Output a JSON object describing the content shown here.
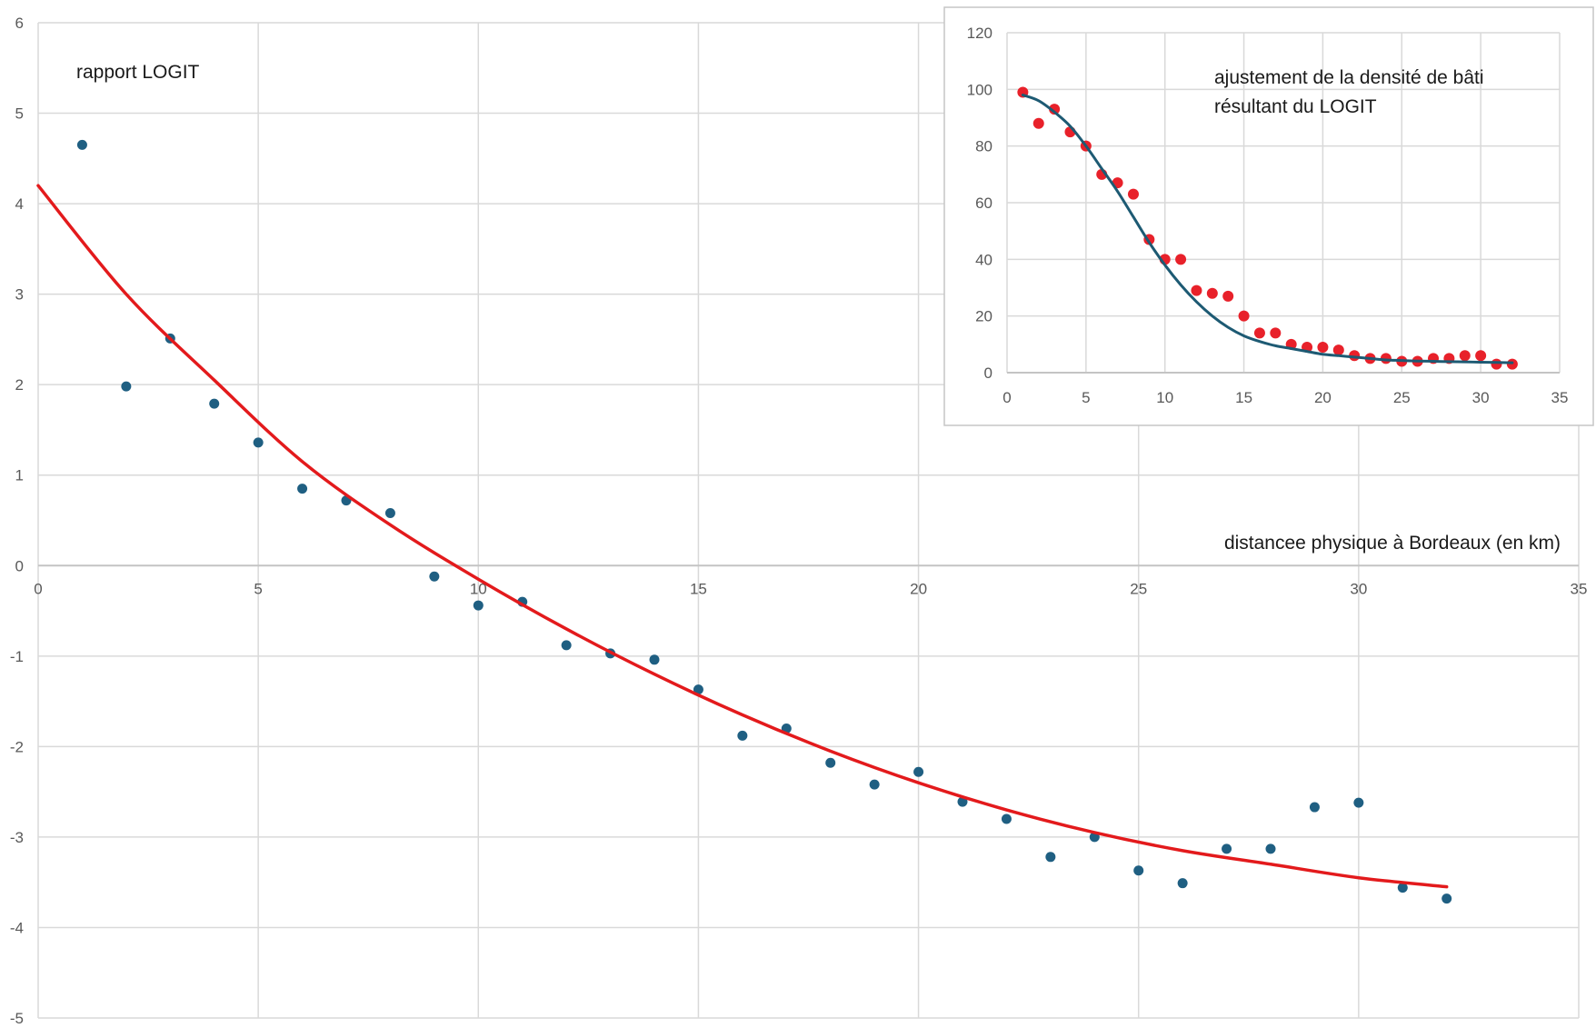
{
  "chart_data": [
    {
      "type": "scatter",
      "title": "",
      "annotations": [
        "rapport LOGIT"
      ],
      "xlabel": "distancee physique à Bordeaux (en km)",
      "ylabel": "",
      "xlim": [
        0,
        35
      ],
      "ylim": [
        -5,
        6
      ],
      "xticks": [
        0,
        5,
        10,
        15,
        20,
        25,
        30,
        35
      ],
      "yticks": [
        -5,
        -4,
        -3,
        -2,
        -1,
        0,
        1,
        2,
        3,
        4,
        5,
        6
      ],
      "grid": true,
      "series": [
        {
          "kind": "scatter",
          "color": "#1f5f82",
          "x": [
            1,
            2,
            3,
            4,
            5,
            6,
            7,
            8,
            9,
            10,
            11,
            12,
            13,
            14,
            15,
            16,
            17,
            18,
            19,
            20,
            21,
            22,
            23,
            24,
            25,
            26,
            27,
            28,
            29,
            30,
            31,
            32
          ],
          "y": [
            4.65,
            1.98,
            2.51,
            1.79,
            1.36,
            0.85,
            0.72,
            0.58,
            -0.12,
            -0.44,
            -0.4,
            -0.88,
            -0.97,
            -1.04,
            -1.37,
            -1.88,
            -1.8,
            -2.18,
            -2.42,
            -2.28,
            -2.61,
            -2.8,
            -3.22,
            -3.0,
            -3.37,
            -3.51,
            -3.13,
            -3.13,
            -2.67,
            -2.62,
            -3.56,
            -3.68
          ]
        },
        {
          "kind": "line",
          "color": "#e31a1c",
          "x": [
            0,
            2,
            4,
            6,
            8,
            10,
            12,
            14,
            16,
            18,
            20,
            22,
            24,
            26,
            28,
            30,
            32
          ],
          "y": [
            4.2,
            3.0,
            2.05,
            1.15,
            0.45,
            -0.15,
            -0.7,
            -1.2,
            -1.65,
            -2.05,
            -2.4,
            -2.7,
            -2.95,
            -3.15,
            -3.3,
            -3.45,
            -3.55
          ]
        }
      ]
    },
    {
      "type": "scatter",
      "title": "",
      "annotations": [
        "ajustement de la densité de bâti",
        "résultant du LOGIT"
      ],
      "xlabel": "",
      "ylabel": "",
      "xlim": [
        0,
        35
      ],
      "ylim": [
        0,
        120
      ],
      "xticks": [
        0,
        5,
        10,
        15,
        20,
        25,
        30,
        35
      ],
      "yticks": [
        0,
        20,
        40,
        60,
        80,
        100,
        120
      ],
      "grid": true,
      "series": [
        {
          "kind": "scatter",
          "color": "#e8212a",
          "x": [
            1,
            2,
            3,
            4,
            5,
            6,
            7,
            8,
            9,
            10,
            11,
            12,
            13,
            14,
            15,
            16,
            17,
            18,
            19,
            20,
            21,
            22,
            23,
            24,
            25,
            26,
            27,
            28,
            29,
            30,
            31,
            32
          ],
          "y": [
            99,
            88,
            93,
            85,
            80,
            70,
            67,
            63,
            47,
            40,
            40,
            29,
            28,
            27,
            20,
            14,
            14,
            10,
            9,
            9,
            8,
            6,
            5,
            5,
            4,
            4,
            5,
            5,
            6,
            6,
            3,
            3
          ]
        },
        {
          "kind": "line",
          "color": "#1d5a73",
          "x": [
            1,
            2,
            3,
            4,
            5,
            6,
            7,
            8,
            9,
            10,
            11,
            12,
            13,
            14,
            15,
            16,
            17,
            18,
            19,
            20,
            21,
            22,
            23,
            24,
            25,
            26,
            27,
            28,
            29,
            30,
            31,
            32
          ],
          "y": [
            98,
            96,
            92,
            87,
            80,
            72,
            64,
            55,
            46,
            38,
            31,
            25,
            20,
            16,
            13,
            11,
            9.5,
            8.5,
            7.5,
            6.5,
            6,
            5.5,
            5,
            4.5,
            4.3,
            4.1,
            4,
            3.9,
            3.8,
            3.7,
            3.6,
            3.5
          ]
        }
      ]
    }
  ]
}
